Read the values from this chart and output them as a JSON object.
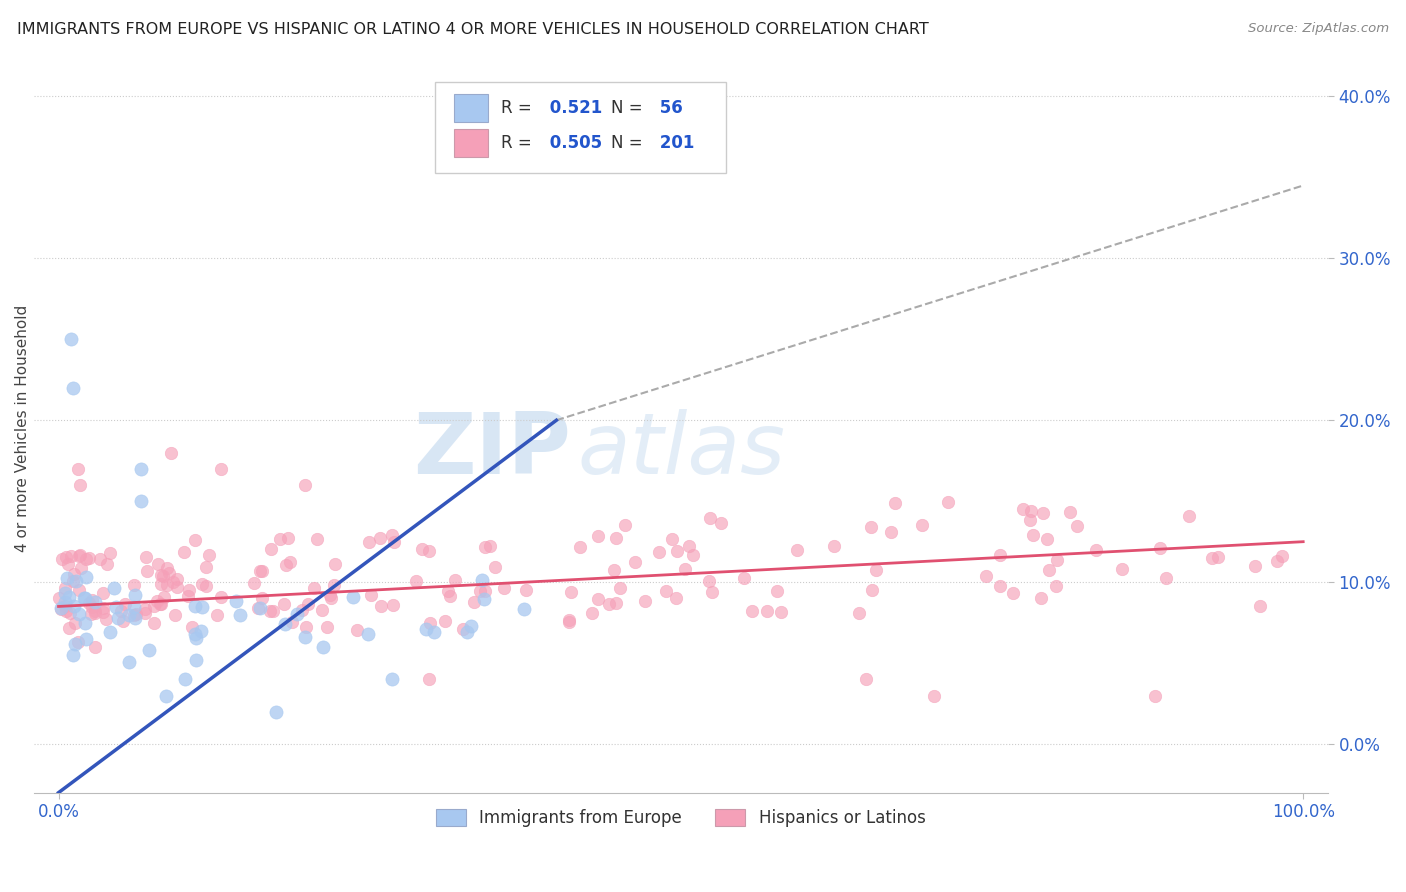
{
  "title": "IMMIGRANTS FROM EUROPE VS HISPANIC OR LATINO 4 OR MORE VEHICLES IN HOUSEHOLD CORRELATION CHART",
  "source": "Source: ZipAtlas.com",
  "ylabel": "4 or more Vehicles in Household",
  "legend_R1": "0.521",
  "legend_N1": "56",
  "legend_R2": "0.505",
  "legend_N2": "201",
  "legend_label1": "Immigrants from Europe",
  "legend_label2": "Hispanics or Latinos",
  "color_blue": "#A8C8F0",
  "color_pink": "#F5A0B8",
  "color_line_blue": "#3355BB",
  "color_line_pink": "#E05070",
  "color_dashed": "#AAAAAA",
  "watermark_zip": "ZIP",
  "watermark_atlas": "atlas",
  "background_color": "#FFFFFF",
  "xlim": [
    -2,
    102
  ],
  "ylim": [
    -3,
    42
  ],
  "ytick_vals": [
    0,
    10,
    20,
    30,
    40
  ],
  "ytick_labels": [
    "0.0%",
    "10.0%",
    "20.0%",
    "30.0%",
    "40.0%"
  ],
  "xtick_vals": [
    0,
    100
  ],
  "xtick_labels": [
    "0.0%",
    "100.0%"
  ],
  "blue_line_x0": 0,
  "blue_line_y0": -3,
  "blue_line_x1": 40,
  "blue_line_y1": 20,
  "pink_line_x0": 0,
  "pink_line_y0": 8.5,
  "pink_line_x1": 100,
  "pink_line_y1": 12.5,
  "dash_line_x0": 40,
  "dash_line_y0": 20,
  "dash_line_x1": 100,
  "dash_line_y1": 34.5
}
